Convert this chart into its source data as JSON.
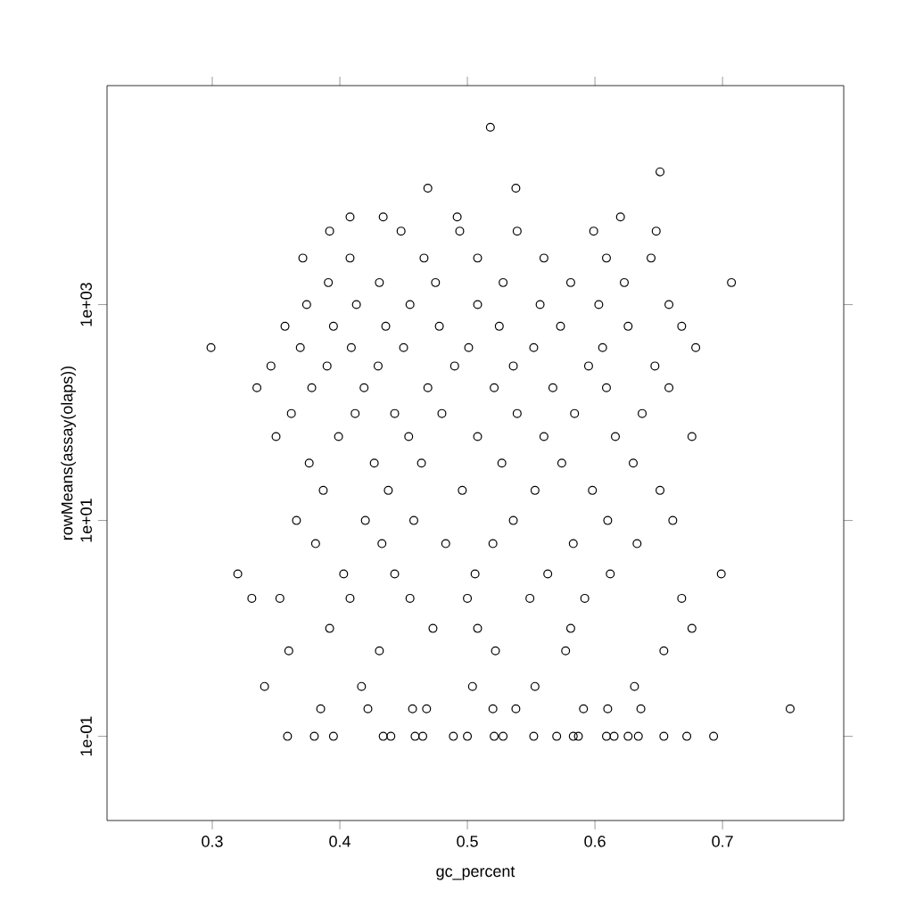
{
  "chart_data": {
    "type": "scatter",
    "xlabel": "gc_percent",
    "ylabel": "rowMeans(assay(olaps))",
    "log": "y",
    "marker": "circle",
    "color": "#000000",
    "xlim": [
      0.2175,
      0.795
    ],
    "ylim": [
      0.0166,
      107000
    ],
    "xticks": [
      0.3,
      0.4,
      0.5,
      0.6,
      0.7
    ],
    "yticks": [
      {
        "value": 0.1,
        "label": "1e-01"
      },
      {
        "value": 10,
        "label": "1e+01"
      },
      {
        "value": 1000,
        "label": "1e+03"
      }
    ],
    "x": [
      0.359,
      0.38,
      0.395,
      0.434,
      0.44,
      0.459,
      0.465,
      0.489,
      0.5,
      0.521,
      0.528,
      0.552,
      0.57,
      0.583,
      0.587,
      0.609,
      0.615,
      0.626,
      0.634,
      0.654,
      0.672,
      0.693,
      0.753,
      0.385,
      0.422,
      0.457,
      0.468,
      0.52,
      0.538,
      0.591,
      0.61,
      0.636,
      0.341,
      0.417,
      0.504,
      0.553,
      0.631,
      0.36,
      0.431,
      0.522,
      0.577,
      0.654,
      0.392,
      0.473,
      0.508,
      0.581,
      0.676,
      0.331,
      0.353,
      0.408,
      0.455,
      0.5,
      0.549,
      0.592,
      0.668,
      0.32,
      0.403,
      0.443,
      0.506,
      0.563,
      0.612,
      0.699,
      0.381,
      0.433,
      0.483,
      0.52,
      0.583,
      0.633,
      0.366,
      0.42,
      0.458,
      0.536,
      0.61,
      0.661,
      0.387,
      0.438,
      0.496,
      0.553,
      0.598,
      0.651,
      0.376,
      0.427,
      0.464,
      0.527,
      0.574,
      0.63,
      0.35,
      0.399,
      0.454,
      0.508,
      0.56,
      0.616,
      0.676,
      0.362,
      0.412,
      0.443,
      0.48,
      0.539,
      0.584,
      0.637,
      0.335,
      0.378,
      0.419,
      0.469,
      0.521,
      0.567,
      0.609,
      0.658,
      0.346,
      0.39,
      0.43,
      0.49,
      0.536,
      0.595,
      0.647,
      0.299,
      0.369,
      0.409,
      0.45,
      0.501,
      0.552,
      0.606,
      0.679,
      0.357,
      0.395,
      0.436,
      0.478,
      0.525,
      0.573,
      0.626,
      0.668,
      0.374,
      0.413,
      0.455,
      0.508,
      0.557,
      0.603,
      0.658,
      0.391,
      0.431,
      0.475,
      0.528,
      0.581,
      0.623,
      0.707,
      0.371,
      0.408,
      0.466,
      0.508,
      0.56,
      0.609,
      0.644,
      0.392,
      0.448,
      0.494,
      0.539,
      0.599,
      0.648,
      0.408,
      0.434,
      0.492,
      0.62,
      0.469,
      0.538,
      0.651,
      0.518
    ],
    "values": [
      0.1,
      0.1,
      0.1,
      0.1,
      0.1,
      0.1,
      0.1,
      0.1,
      0.1,
      0.1,
      0.1,
      0.1,
      0.1,
      0.1,
      0.1,
      0.1,
      0.1,
      0.1,
      0.1,
      0.1,
      0.1,
      0.1,
      0.18,
      0.18,
      0.18,
      0.18,
      0.18,
      0.18,
      0.18,
      0.18,
      0.18,
      0.18,
      0.29,
      0.29,
      0.29,
      0.29,
      0.29,
      0.62,
      0.62,
      0.62,
      0.62,
      0.62,
      1,
      1,
      1,
      1,
      1,
      1.9,
      1.9,
      1.9,
      1.9,
      1.9,
      1.9,
      1.9,
      1.9,
      3.2,
      3.2,
      3.2,
      3.2,
      3.2,
      3.2,
      3.2,
      6.1,
      6.1,
      6.1,
      6.1,
      6.1,
      6.1,
      10,
      10,
      10,
      10,
      10,
      10,
      19,
      19,
      19,
      19,
      19,
      19,
      34,
      34,
      34,
      34,
      34,
      34,
      60,
      60,
      60,
      60,
      60,
      60,
      60,
      98,
      98,
      98,
      98,
      98,
      98,
      98,
      170,
      170,
      170,
      170,
      170,
      170,
      170,
      170,
      270,
      270,
      270,
      270,
      270,
      270,
      270,
      400,
      400,
      400,
      400,
      400,
      400,
      400,
      400,
      630,
      630,
      630,
      630,
      630,
      630,
      630,
      630,
      1000,
      1000,
      1000,
      1000,
      1000,
      1000,
      1000,
      1600,
      1600,
      1600,
      1600,
      1600,
      1600,
      1600,
      2700,
      2700,
      2700,
      2700,
      2700,
      2700,
      2700,
      4800,
      4800,
      4800,
      4800,
      4800,
      4800,
      6500,
      6500,
      6500,
      6500,
      12000,
      12000,
      17000,
      44000
    ]
  }
}
